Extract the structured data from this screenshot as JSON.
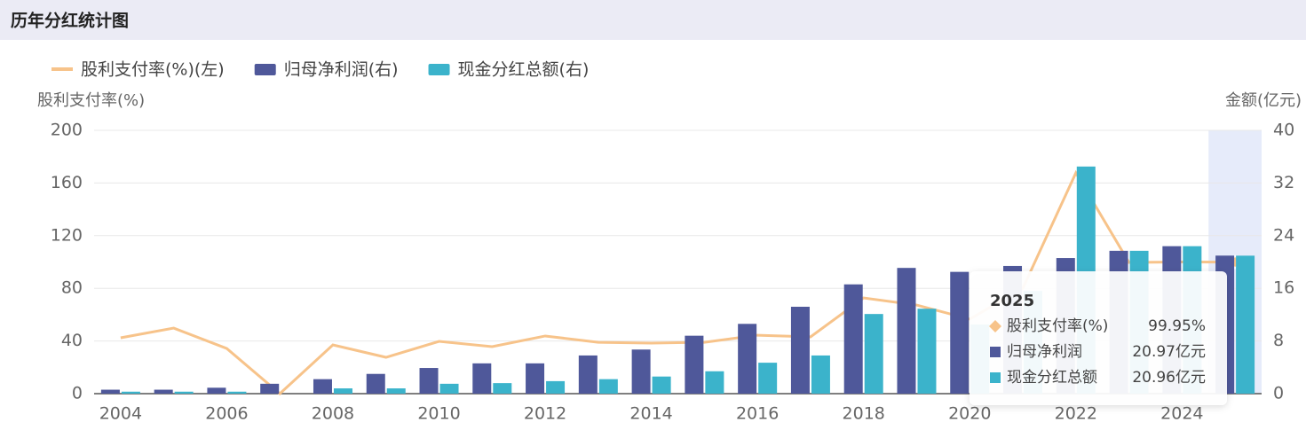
{
  "header": {
    "title": "历年分红统计图"
  },
  "chart_data": {
    "type": "combo",
    "y_title": "股利支付率(%)",
    "y2_title": "金额(亿元)",
    "categories": [
      "2004",
      null,
      "2006",
      null,
      "2008",
      null,
      "2010",
      null,
      "2012",
      null,
      "2014",
      null,
      "2016",
      null,
      "2018",
      null,
      "2020",
      null,
      "2022",
      null,
      "2024",
      null
    ],
    "series": [
      {
        "name": "股利支付率(%)(左)",
        "type": "line",
        "axis": "y",
        "color": "#f7c38a",
        "values": [
          42.4,
          49.8,
          34.3,
          0,
          37,
          27.6,
          39.7,
          35.7,
          43.8,
          39,
          38.4,
          39,
          44.4,
          43.1,
          72.7,
          67.3,
          56.6,
          80,
          167.7,
          99.7,
          100,
          99.95
        ],
        "value_labels": [
          null,
          null,
          null,
          null,
          null,
          null,
          null,
          null,
          null,
          null,
          null,
          null,
          null,
          null,
          null,
          null,
          null,
          null,
          null,
          null,
          null,
          "99.95%"
        ]
      },
      {
        "name": "归母净利润(右)",
        "type": "bar",
        "axis": "y2",
        "color": "#4f589a",
        "values": [
          0.6,
          0.6,
          0.9,
          1.5,
          2.2,
          3.0,
          3.9,
          4.6,
          4.6,
          5.8,
          6.7,
          8.8,
          10.6,
          13.2,
          16.6,
          19.1,
          18.5,
          19.4,
          20.6,
          21.7,
          22.4,
          20.97
        ],
        "value_labels": [
          null,
          null,
          null,
          null,
          null,
          null,
          null,
          null,
          null,
          null,
          null,
          null,
          null,
          null,
          null,
          null,
          null,
          null,
          null,
          null,
          null,
          "20.97亿元"
        ]
      },
      {
        "name": "现金分红总额(右)",
        "type": "bar",
        "axis": "y2",
        "color": "#3bb3cb",
        "values": [
          0.3,
          0.3,
          0.3,
          0,
          0.8,
          0.8,
          1.5,
          1.6,
          1.9,
          2.2,
          2.6,
          3.4,
          4.7,
          5.8,
          12.1,
          12.9,
          10.5,
          15.6,
          34.5,
          21.7,
          22.4,
          20.96
        ],
        "value_labels": [
          null,
          null,
          null,
          null,
          null,
          null,
          null,
          null,
          null,
          null,
          null,
          null,
          null,
          null,
          null,
          null,
          null,
          null,
          null,
          null,
          null,
          "20.96亿元"
        ]
      }
    ],
    "ylim": [
      0,
      200
    ],
    "yticks": [
      0,
      40,
      80,
      120,
      160,
      200
    ],
    "y2lim": [
      0,
      40
    ],
    "y2ticks": [
      0,
      8,
      16,
      24,
      32,
      40
    ],
    "grid": true,
    "tooltip": {
      "title": "2025",
      "names": [
        "股利支付率(%)",
        "归母净利润",
        "现金分红总额"
      ]
    }
  }
}
